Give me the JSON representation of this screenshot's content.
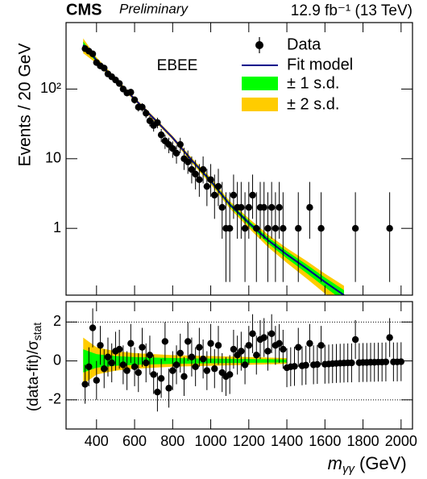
{
  "chart_data": [
    {
      "type": "scatter",
      "cms": "CMS",
      "preliminary": "Preliminary",
      "lumi": "12.9 fb⁻¹ (13 TeV)",
      "label": "EBEE",
      "ylabel": "Events / 20 GeV",
      "log_y": true,
      "xlim": [
        240,
        2060
      ],
      "ylim": [
        0.11,
        900
      ],
      "yticks": [
        1,
        10,
        {
          "value": 100,
          "label": "10²"
        }
      ],
      "data": {
        "name": "Data",
        "color": "#000000",
        "x": [
          340,
          360,
          380,
          400,
          420,
          440,
          460,
          480,
          500,
          520,
          540,
          560,
          580,
          600,
          620,
          640,
          660,
          680,
          700,
          720,
          740,
          760,
          780,
          800,
          820,
          840,
          860,
          880,
          900,
          920,
          940,
          960,
          980,
          1000,
          1020,
          1040,
          1060,
          1080,
          1100,
          1120,
          1140,
          1160,
          1180,
          1200,
          1220,
          1240,
          1260,
          1280,
          1300,
          1320,
          1340,
          1360,
          1380,
          1460,
          1520,
          1580,
          1760,
          1940
        ],
        "values": [
          380,
          350,
          320,
          240,
          215,
          200,
          165,
          150,
          135,
          120,
          100,
          88,
          90,
          70,
          55,
          55,
          45,
          35,
          30,
          33,
          22,
          18,
          16,
          14,
          12,
          16,
          10,
          9,
          7,
          6,
          5,
          7,
          4,
          5,
          3,
          4,
          2,
          1,
          1,
          3,
          2,
          2,
          1,
          2,
          3,
          1,
          2,
          2,
          1,
          2,
          1,
          2,
          1,
          1,
          2,
          1,
          1,
          1
        ],
        "yerr": [
          [
            19.5,
            19.5
          ],
          [
            18.7,
            18.7
          ],
          [
            17.9,
            17.9
          ],
          [
            15.5,
            15.5
          ],
          [
            14.7,
            14.7
          ],
          [
            14.1,
            14.1
          ],
          [
            12.8,
            12.8
          ],
          [
            12.2,
            12.2
          ],
          [
            11.6,
            11.6
          ],
          [
            11,
            11
          ],
          [
            10,
            10
          ],
          [
            9.4,
            9.4
          ],
          [
            9.5,
            9.5
          ],
          [
            8.4,
            8.4
          ],
          [
            7.4,
            7.4
          ],
          [
            7.4,
            7.4
          ],
          [
            6.7,
            6.7
          ],
          [
            5.9,
            5.9
          ],
          [
            5.5,
            5.5
          ],
          [
            5.7,
            5.7
          ],
          [
            4.7,
            4.7
          ],
          [
            4.2,
            4.2
          ],
          [
            4,
            4
          ],
          [
            3.7,
            3.7
          ],
          [
            3.5,
            3.5
          ],
          [
            4,
            4
          ],
          [
            3.1,
            4.3
          ],
          [
            2.94,
            4.11
          ],
          [
            2.58,
            3.77
          ],
          [
            2.38,
            3.58
          ],
          [
            2.16,
            3.38
          ],
          [
            2.58,
            3.77
          ],
          [
            1.91,
            3.16
          ],
          [
            2.16,
            3.38
          ],
          [
            1.63,
            2.92
          ],
          [
            1.91,
            3.16
          ],
          [
            1.29,
            2.64
          ],
          [
            0.83,
            2.3
          ],
          [
            0.83,
            2.3
          ],
          [
            1.63,
            2.92
          ],
          [
            1.29,
            2.64
          ],
          [
            1.29,
            2.64
          ],
          [
            0.83,
            2.3
          ],
          [
            1.29,
            2.64
          ],
          [
            1.63,
            2.92
          ],
          [
            0.83,
            2.3
          ],
          [
            1.29,
            2.64
          ],
          [
            1.29,
            2.64
          ],
          [
            0.83,
            2.3
          ],
          [
            1.29,
            2.64
          ],
          [
            0.83,
            2.3
          ],
          [
            1.29,
            2.64
          ],
          [
            0.83,
            2.3
          ],
          [
            0.83,
            2.3
          ],
          [
            1.29,
            2.64
          ],
          [
            0.83,
            2.3
          ],
          [
            0.83,
            2.3
          ],
          [
            0.83,
            2.3
          ]
        ]
      },
      "fit": {
        "name": "Fit model",
        "color": "#00008b",
        "x": [
          330,
          400,
          500,
          600,
          700,
          800,
          900,
          1000,
          1100,
          1200,
          1300,
          1400,
          1500,
          1600,
          1700
        ],
        "values": [
          430,
          260,
          135,
          72,
          38,
          20,
          9.5,
          4.8,
          2.2,
          1.2,
          0.68,
          0.42,
          0.27,
          0.17,
          0.11
        ]
      },
      "bands": [
        {
          "name": "± 2 s.d.",
          "color": "#ffcc00",
          "low": [
            327,
            234,
            124,
            68,
            35.7,
            18.8,
            8.7,
            4.3,
            1.94,
            1.01,
            0.54,
            0.32,
            0.194,
            0.116,
            0.07
          ],
          "high": [
            533,
            286,
            146,
            76,
            40.3,
            21.2,
            10.3,
            5.3,
            2.46,
            1.39,
            0.82,
            0.52,
            0.346,
            0.224,
            0.15
          ]
        },
        {
          "name": "± 1 s.d.",
          "color": "#00ff00",
          "low": [
            378,
            247,
            130,
            70,
            36.9,
            19.4,
            9.1,
            4.56,
            2.07,
            1.1,
            0.61,
            0.37,
            0.232,
            0.143,
            0.09
          ],
          "high": [
            482,
            273,
            140,
            74,
            39.1,
            20.6,
            9.9,
            5.04,
            2.33,
            1.3,
            0.75,
            0.47,
            0.308,
            0.197,
            0.13
          ]
        }
      ]
    },
    {
      "type": "scatter",
      "ylabel": "(data-fit)/σ",
      "ylabel_sub": "stat",
      "xlabel": "m",
      "xlabel_sub": "γγ",
      "xlabel_unit": "(GeV)",
      "xlim": [
        240,
        2060
      ],
      "ylim": [
        -3.5,
        3.05
      ],
      "xticks": [
        400,
        600,
        800,
        1000,
        1200,
        1400,
        1600,
        1800,
        2000
      ],
      "yticks": [
        -2,
        0,
        2
      ],
      "reflines": [
        -2,
        2
      ],
      "data": {
        "color": "#000000",
        "yerr": 1,
        "x": [
          340,
          360,
          380,
          400,
          420,
          440,
          460,
          480,
          500,
          520,
          540,
          560,
          580,
          600,
          620,
          640,
          660,
          680,
          700,
          720,
          740,
          760,
          780,
          800,
          820,
          840,
          860,
          880,
          900,
          920,
          940,
          960,
          980,
          1000,
          1020,
          1040,
          1060,
          1080,
          1100,
          1120,
          1140,
          1160,
          1180,
          1200,
          1220,
          1240,
          1260,
          1280,
          1300,
          1320,
          1340,
          1360,
          1380,
          1460,
          1520,
          1580,
          1760,
          1940,
          1400,
          1420,
          1440,
          1480,
          1500,
          1540,
          1560,
          1600,
          1620,
          1640,
          1660,
          1680,
          1700,
          1720,
          1740,
          1780,
          1800,
          1820,
          1840,
          1860,
          1880,
          1900,
          1920,
          1960,
          1980,
          2000
        ],
        "values": [
          -1.2,
          -0.3,
          1.7,
          -1.0,
          0.8,
          -0.4,
          0.2,
          -0.1,
          0.5,
          0.6,
          -0.2,
          -0.5,
          0.9,
          -0.3,
          -0.6,
          0.7,
          -0.1,
          0.3,
          -0.7,
          -1.6,
          -0.9,
          1.0,
          -1.4,
          -0.5,
          -0.2,
          0.4,
          -0.8,
          1.0,
          0.2,
          -0.3,
          0.7,
          0.1,
          -0.5,
          0.9,
          -0.4,
          0.8,
          -0.6,
          -0.8,
          -0.7,
          0.6,
          0.3,
          0.5,
          -0.2,
          0.8,
          1.4,
          0.3,
          1.1,
          1.2,
          0.5,
          1.4,
          0.8,
          0.9,
          0.6,
          0.7,
          0.9,
          0.8,
          1.1,
          1.2,
          -0.35,
          -0.3,
          -0.28,
          -0.25,
          -0.22,
          -0.2,
          -0.18,
          -0.17,
          -0.16,
          -0.14,
          -0.13,
          -0.12,
          -0.11,
          -0.1,
          -0.1,
          -0.09,
          -0.08,
          -0.08,
          -0.07,
          -0.07,
          -0.06,
          -0.06,
          -0.05,
          -0.05,
          -0.05,
          -0.04
        ]
      },
      "bands": [
        {
          "color": "#ffcc00",
          "x": [
            330,
            400,
            500,
            600,
            800,
            1000,
            1200,
            1400
          ],
          "values": [
            1.2,
            0.7,
            0.5,
            0.4,
            0.3,
            0.25,
            0.2,
            0.15
          ]
        },
        {
          "color": "#00ff00",
          "x": [
            330,
            400,
            500,
            600,
            800,
            1000,
            1200,
            1400
          ],
          "values": [
            0.6,
            0.35,
            0.25,
            0.2,
            0.15,
            0.12,
            0.1,
            0.08
          ]
        }
      ]
    }
  ]
}
